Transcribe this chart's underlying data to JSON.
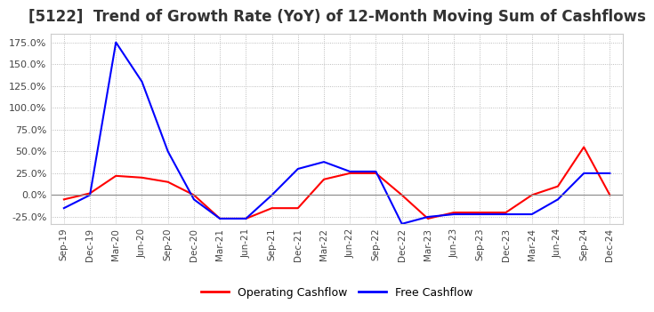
{
  "title": "[5122]  Trend of Growth Rate (YoY) of 12-Month Moving Sum of Cashflows",
  "title_fontsize": 12,
  "title_color": "#333333",
  "legend_labels": [
    "Operating Cashflow",
    "Free Cashflow"
  ],
  "legend_colors": [
    "#ff0000",
    "#0000ff"
  ],
  "x_labels": [
    "Sep-19",
    "Dec-19",
    "Mar-20",
    "Jun-20",
    "Sep-20",
    "Dec-20",
    "Mar-21",
    "Jun-21",
    "Sep-21",
    "Dec-21",
    "Mar-22",
    "Jun-22",
    "Sep-22",
    "Dec-22",
    "Mar-23",
    "Jun-23",
    "Sep-23",
    "Dec-23",
    "Mar-24",
    "Jun-24",
    "Sep-24",
    "Dec-24"
  ],
  "ylim": [
    -0.33,
    1.85
  ],
  "yticks": [
    -0.25,
    0.0,
    0.25,
    0.5,
    0.75,
    1.0,
    1.25,
    1.5,
    1.75
  ],
  "operating_cashflow": [
    -0.05,
    0.02,
    0.22,
    0.2,
    0.15,
    0.0,
    -0.27,
    -0.27,
    -0.15,
    -0.15,
    0.18,
    0.25,
    0.25,
    0.0,
    -0.27,
    -0.2,
    -0.2,
    -0.2,
    0.0,
    0.1,
    0.55,
    0.0
  ],
  "free_cashflow": [
    -0.15,
    0.0,
    1.75,
    1.3,
    0.5,
    -0.05,
    -0.27,
    -0.27,
    0.0,
    0.3,
    0.38,
    0.27,
    0.27,
    -0.33,
    -0.25,
    -0.22,
    -0.22,
    -0.22,
    -0.22,
    -0.05,
    0.25,
    0.25
  ],
  "background_color": "#ffffff",
  "plot_bg_color": "#ffffff",
  "grid_color": "#aaaaaa",
  "zero_line_color": "#888888",
  "line_width": 1.5
}
